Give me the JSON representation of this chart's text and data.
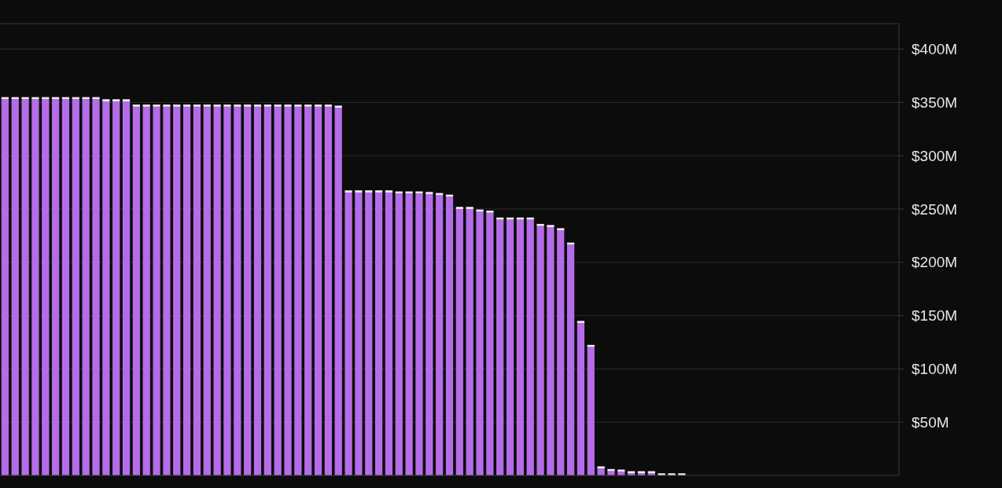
{
  "chart_data": {
    "type": "bar",
    "stacked": true,
    "categories": [
      null,
      null,
      null,
      null,
      null,
      null,
      null,
      null,
      null,
      null,
      null,
      null,
      null,
      null,
      null,
      null,
      null,
      null,
      null,
      null,
      null,
      null,
      null,
      null,
      null,
      null,
      null,
      null,
      null,
      null,
      null,
      null,
      null,
      null,
      null,
      null,
      null,
      null,
      null,
      null,
      null,
      null,
      null,
      null,
      null,
      null,
      null,
      null,
      null,
      null,
      null,
      null,
      null,
      null,
      null,
      null,
      null,
      null,
      null,
      null,
      null,
      null,
      null,
      null,
      null,
      null,
      null,
      null,
      null,
      null,
      null,
      null,
      null,
      null,
      null,
      null,
      null,
      null,
      null,
      null,
      null,
      null,
      null,
      null,
      null,
      null,
      null,
      null,
      null
    ],
    "series": [
      {
        "color": "#b56ce8",
        "values": [
          353,
          353,
          353,
          353,
          353,
          353,
          353,
          353,
          353,
          353,
          351,
          351,
          351,
          346,
          346,
          346,
          346,
          346,
          346,
          346,
          346,
          346,
          346,
          346,
          346,
          346,
          346,
          346,
          346,
          346,
          346,
          346,
          346,
          345,
          265.5,
          265.5,
          265.5,
          265.5,
          265.5,
          264.5,
          264.5,
          264.5,
          264,
          263,
          261.5,
          250,
          250,
          247.5,
          246.5,
          240,
          240,
          240,
          240,
          234,
          233,
          230,
          216.5,
          143,
          120.5,
          6.5,
          4,
          3.5,
          2,
          2,
          2,
          0,
          0,
          0,
          null,
          null,
          null,
          null,
          null,
          null,
          null,
          null,
          null,
          null,
          null,
          null,
          null,
          null,
          null,
          null,
          null,
          null,
          null,
          null,
          null
        ]
      },
      {
        "color": "#f2eaf6",
        "values": [
          2,
          2,
          2,
          2,
          2,
          2,
          2,
          2,
          2,
          2,
          2,
          2,
          2,
          2,
          2,
          2,
          2,
          2,
          2,
          2,
          2,
          2,
          2,
          2,
          2,
          2,
          2,
          2,
          2,
          2,
          2,
          2,
          2,
          2,
          2,
          2,
          2,
          2,
          2,
          2,
          2,
          2,
          2,
          2,
          2,
          2,
          2,
          2,
          2,
          2,
          2,
          2,
          2,
          2,
          2,
          2,
          2,
          2,
          2,
          2,
          2,
          2,
          2,
          2,
          2,
          2,
          2,
          2,
          null,
          null,
          null,
          null,
          null,
          null,
          null,
          null,
          null,
          null,
          null,
          null,
          null,
          null,
          null,
          null,
          null,
          null,
          null,
          null,
          null
        ]
      }
    ],
    "ylim": [
      0,
      424
    ],
    "yticks": [
      {
        "value": 50,
        "label": "$50M"
      },
      {
        "value": 100,
        "label": "$100M"
      },
      {
        "value": 150,
        "label": "$150M"
      },
      {
        "value": 200,
        "label": "$200M"
      },
      {
        "value": 250,
        "label": "$250M"
      },
      {
        "value": 300,
        "label": "$300M"
      },
      {
        "value": 350,
        "label": "$350M"
      },
      {
        "value": 400,
        "label": "$400M"
      }
    ],
    "tick_labels": "y",
    "grid": "y"
  }
}
